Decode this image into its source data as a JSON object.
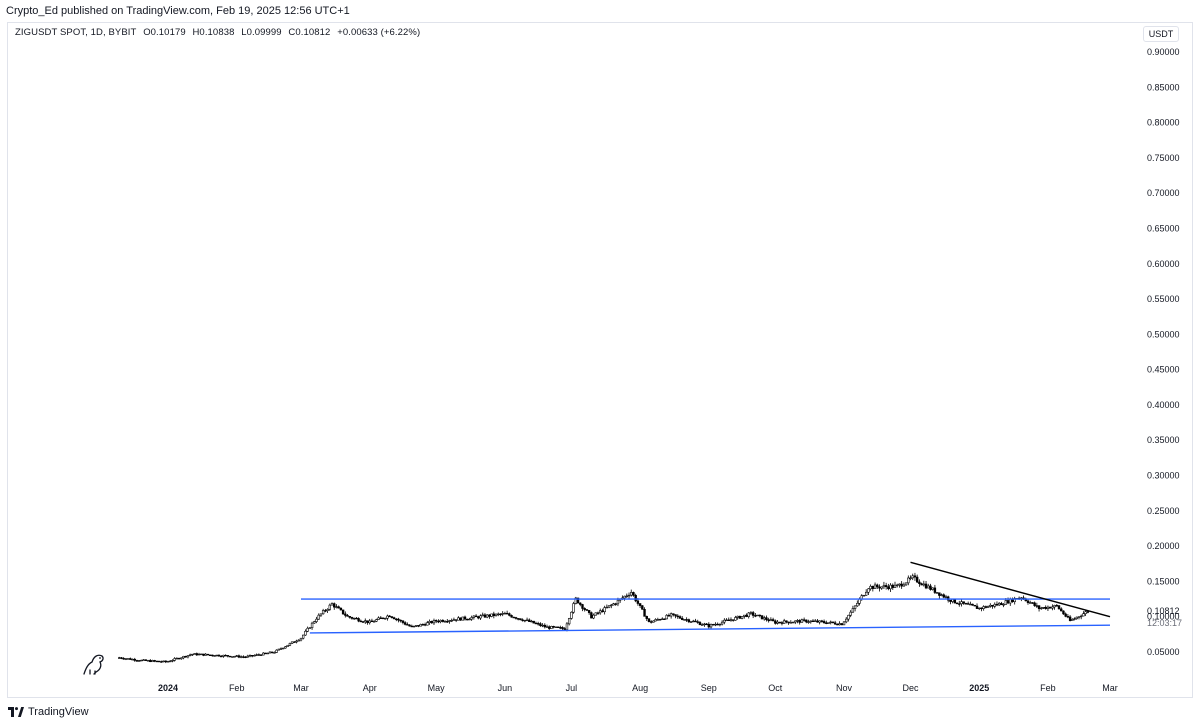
{
  "header": {
    "published_line": "Crypto_Ed published on TradingView.com, Feb 19, 2025 12:56 UTC+1"
  },
  "legend": {
    "symbol": "ZIGUSDT SPOT, 1D, BYBIT",
    "open": "O0.10179",
    "high": "H0.10838",
    "low": "L0.09999",
    "close": "C0.10812",
    "change": "+0.00633 (+6.22%)"
  },
  "currency": "USDT",
  "footer": {
    "brand": "TradingView"
  },
  "chart_data": {
    "type": "candlestick",
    "title": "ZIGUSDT SPOT, 1D, BYBIT",
    "xlabel": "",
    "ylabel": "",
    "ylim": [
      0.0,
      0.92
    ],
    "y_ticks": [
      "0.90000",
      "0.85000",
      "0.80000",
      "0.75000",
      "0.70000",
      "0.65000",
      "0.60000",
      "0.55000",
      "0.50000",
      "0.45000",
      "0.40000",
      "0.35000",
      "0.30000",
      "0.25000",
      "0.20000",
      "0.15000",
      "0.10000",
      "0.05000"
    ],
    "x_ticks": [
      {
        "label": "2024",
        "date": "2024-01-01",
        "bold": true
      },
      {
        "label": "Feb",
        "date": "2024-02-01"
      },
      {
        "label": "Mar",
        "date": "2024-03-01"
      },
      {
        "label": "Apr",
        "date": "2024-04-01"
      },
      {
        "label": "May",
        "date": "2024-05-01"
      },
      {
        "label": "Jun",
        "date": "2024-06-01"
      },
      {
        "label": "Jul",
        "date": "2024-07-01"
      },
      {
        "label": "Aug",
        "date": "2024-08-01"
      },
      {
        "label": "Sep",
        "date": "2024-09-01"
      },
      {
        "label": "Oct",
        "date": "2024-10-01"
      },
      {
        "label": "Nov",
        "date": "2024-11-01"
      },
      {
        "label": "Dec",
        "date": "2024-12-01"
      },
      {
        "label": "2025",
        "date": "2025-01-01",
        "bold": true
      },
      {
        "label": "Feb",
        "date": "2025-02-01"
      },
      {
        "label": "Mar",
        "date": "2025-03-01"
      }
    ],
    "close_path": [
      [
        "2023-12-10",
        0.042
      ],
      [
        "2023-12-20",
        0.038
      ],
      [
        "2023-12-31",
        0.036
      ],
      [
        "2024-01-12",
        0.047
      ],
      [
        "2024-01-25",
        0.045
      ],
      [
        "2024-02-05",
        0.043
      ],
      [
        "2024-02-18",
        0.05
      ],
      [
        "2024-03-01",
        0.07
      ],
      [
        "2024-03-08",
        0.098
      ],
      [
        "2024-03-15",
        0.118
      ],
      [
        "2024-03-22",
        0.1
      ],
      [
        "2024-04-01",
        0.092
      ],
      [
        "2024-04-10",
        0.102
      ],
      [
        "2024-04-20",
        0.085
      ],
      [
        "2024-05-01",
        0.094
      ],
      [
        "2024-05-15",
        0.098
      ],
      [
        "2024-06-01",
        0.104
      ],
      [
        "2024-06-10",
        0.095
      ],
      [
        "2024-06-20",
        0.085
      ],
      [
        "2024-06-28",
        0.083
      ],
      [
        "2024-07-03",
        0.125
      ],
      [
        "2024-07-10",
        0.1
      ],
      [
        "2024-07-20",
        0.118
      ],
      [
        "2024-07-28",
        0.135
      ],
      [
        "2024-08-05",
        0.092
      ],
      [
        "2024-08-15",
        0.102
      ],
      [
        "2024-09-01",
        0.087
      ],
      [
        "2024-09-20",
        0.104
      ],
      [
        "2024-10-01",
        0.092
      ],
      [
        "2024-10-15",
        0.094
      ],
      [
        "2024-10-31",
        0.09
      ],
      [
        "2024-11-05",
        0.11
      ],
      [
        "2024-11-12",
        0.142
      ],
      [
        "2024-11-25",
        0.143
      ],
      [
        "2024-12-02",
        0.155
      ],
      [
        "2024-12-10",
        0.14
      ],
      [
        "2024-12-20",
        0.122
      ],
      [
        "2025-01-01",
        0.112
      ],
      [
        "2025-01-10",
        0.118
      ],
      [
        "2025-01-20",
        0.128
      ],
      [
        "2025-01-28",
        0.112
      ],
      [
        "2025-02-05",
        0.115
      ],
      [
        "2025-02-11",
        0.094
      ],
      [
        "2025-02-19",
        0.108
      ]
    ],
    "last_price": "0.10812",
    "countdown": "12:03:17",
    "trendlines": [
      {
        "name": "range-top",
        "color": "#2962ff",
        "from": [
          "2024-03-01",
          0.125
        ],
        "to": [
          "2025-03-01",
          0.125
        ]
      },
      {
        "name": "range-bottom",
        "color": "#2962ff",
        "from": [
          "2024-03-05",
          0.077
        ],
        "to": [
          "2025-03-01",
          0.088
        ]
      },
      {
        "name": "descending-resistance",
        "color": "#000000",
        "from": [
          "2024-12-01",
          0.177
        ],
        "to": [
          "2025-03-01",
          0.1
        ]
      }
    ],
    "grid": false,
    "colors": {
      "candle": "#000000",
      "support_resistance": "#2962ff",
      "trendline": "#000000"
    }
  }
}
